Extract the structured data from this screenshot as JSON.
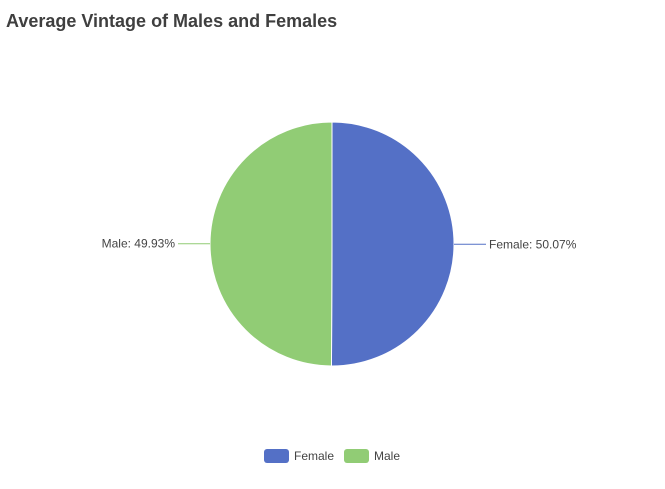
{
  "chart_data": {
    "type": "pie",
    "title": "Average Vintage of Males and Females",
    "slices": [
      {
        "name": "Female",
        "value": 50.07,
        "label": "Female: 50.07%",
        "color": "#5470c6"
      },
      {
        "name": "Male",
        "value": 49.93,
        "label": "Male: 49.93%",
        "color": "#91cc75"
      }
    ],
    "legend": {
      "placement": "bottom-center",
      "items": [
        "Female",
        "Male"
      ]
    }
  }
}
